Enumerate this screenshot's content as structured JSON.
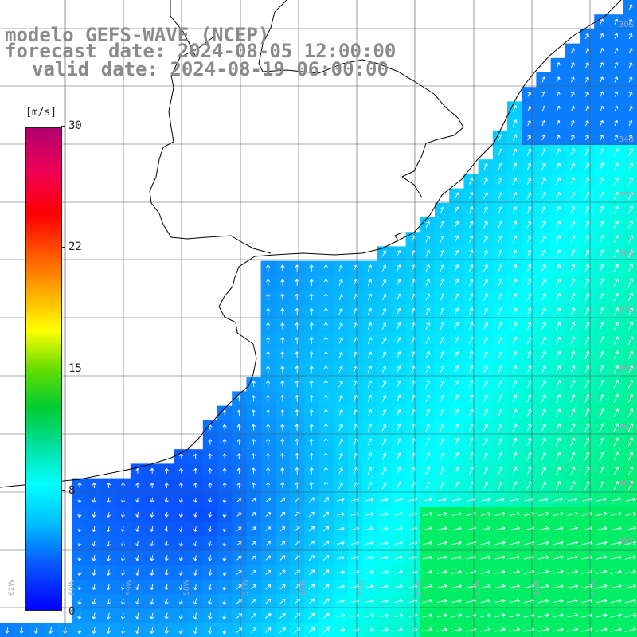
{
  "title": {
    "line1": "modelo GEFS-WAVE (NCEP)",
    "line2": "forecast date: 2024-08-05 12:00:00",
    "line3": "valid date: 2024-08-19 06:00:00"
  },
  "colorbar": {
    "unit": "[m/s]",
    "ticks": [
      {
        "label": "30",
        "value": 30
      },
      {
        "label": "22",
        "value": 22
      },
      {
        "label": "15",
        "value": 15
      },
      {
        "label": "8",
        "value": 8
      },
      {
        "label": "0",
        "value": 0
      }
    ]
  },
  "latitude_labels": [
    "30S",
    "34S",
    "35S",
    "36S",
    "37S",
    "38S",
    "39S",
    "40S",
    "41S"
  ],
  "longitude_labels": [
    "62W",
    "60W",
    "59W",
    "58W",
    "57W",
    "56W",
    "55W",
    "54W",
    "53W",
    "52W",
    "51W"
  ],
  "colors": {
    "ocean_low": "#0a3cff",
    "ocean_mid": "#0aa0ff",
    "ocean_high": "#00ffff",
    "ocean_max": "#00ee66",
    "arrow": "#ffffff",
    "coast": "#000000",
    "grid": "#555555"
  }
}
